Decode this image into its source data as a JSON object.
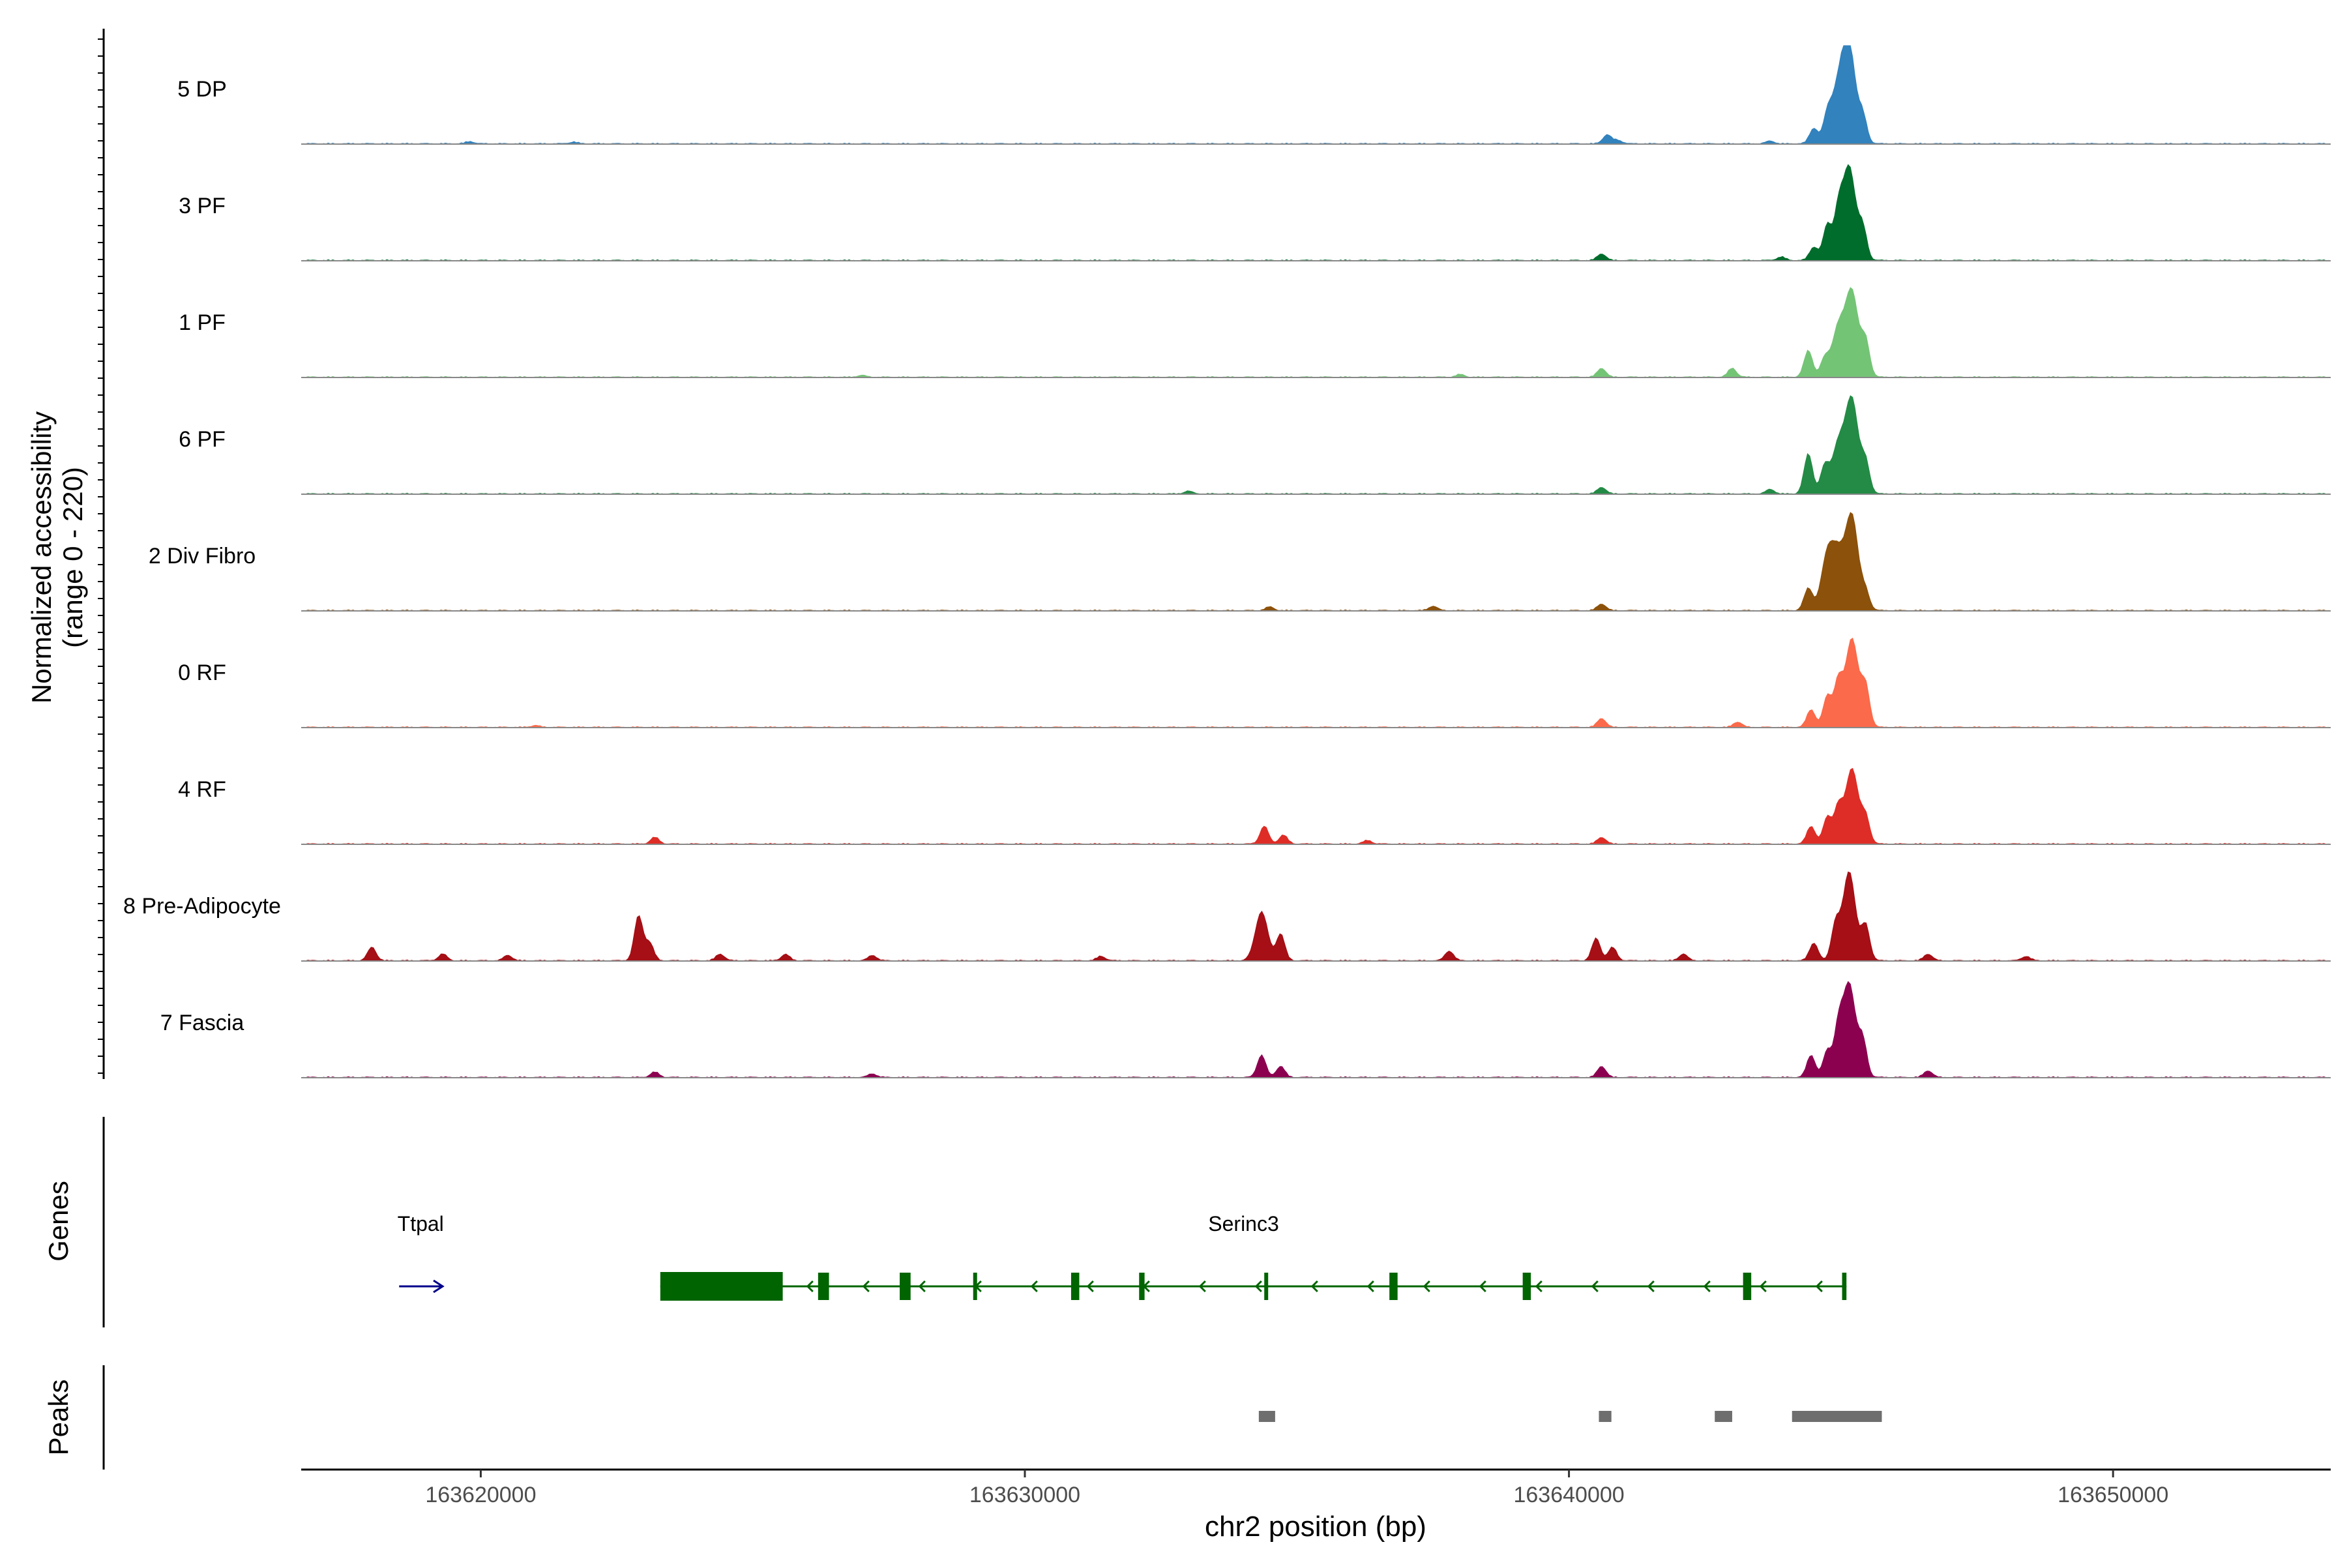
{
  "chart_data": {
    "type": "area",
    "title": "",
    "y_axis_title_line1": "Normalized accessibility",
    "y_axis_title_line2": "(range 0 - 220)",
    "ylim": [
      0,
      220
    ],
    "xlabel": "chr2 position (bp)",
    "xlim": [
      163616700,
      163654000
    ],
    "x_ticks": [
      163620000,
      163630000,
      163640000,
      163650000
    ],
    "x_tick_labels": [
      "163620000",
      "163630000",
      "163640000",
      "163650000"
    ],
    "series": [
      {
        "name": "5 DP",
        "color": "#3182bd",
        "peak_value": 215,
        "peaks": [
          [
            163644500,
            35
          ],
          [
            163644750,
            60
          ],
          [
            163644950,
            120
          ],
          [
            163645150,
            215
          ],
          [
            163645400,
            60
          ],
          [
            163640700,
            20
          ],
          [
            163640900,
            8
          ],
          [
            163619800,
            5
          ],
          [
            163621700,
            4
          ],
          [
            163643700,
            6
          ]
        ]
      },
      {
        "name": "3 PF",
        "color": "#006d2c",
        "peak_value": 210,
        "peaks": [
          [
            163644500,
            30
          ],
          [
            163644750,
            80
          ],
          [
            163644950,
            100
          ],
          [
            163645150,
            210
          ],
          [
            163645400,
            70
          ],
          [
            163640600,
            15
          ],
          [
            163643900,
            8
          ]
        ]
      },
      {
        "name": "1 PF",
        "color": "#74c476",
        "peak_value": 190,
        "peaks": [
          [
            163644400,
            60
          ],
          [
            163644700,
            40
          ],
          [
            163644950,
            110
          ],
          [
            163645200,
            190
          ],
          [
            163645450,
            80
          ],
          [
            163640600,
            20
          ],
          [
            163643000,
            20
          ],
          [
            163638000,
            6
          ],
          [
            163627000,
            4
          ]
        ]
      },
      {
        "name": "6 PF",
        "color": "#238b45",
        "peak_value": 210,
        "peaks": [
          [
            163644400,
            90
          ],
          [
            163644700,
            60
          ],
          [
            163644950,
            110
          ],
          [
            163645200,
            210
          ],
          [
            163645450,
            70
          ],
          [
            163640600,
            15
          ],
          [
            163643700,
            10
          ],
          [
            163633000,
            6
          ]
        ]
      },
      {
        "name": "2 Div Fibro",
        "color": "#8c510a",
        "peak_value": 210,
        "peaks": [
          [
            163644400,
            50
          ],
          [
            163644750,
            120
          ],
          [
            163644950,
            110
          ],
          [
            163645200,
            210
          ],
          [
            163645450,
            40
          ],
          [
            163640600,
            15
          ],
          [
            163637500,
            10
          ],
          [
            163634500,
            8
          ]
        ]
      },
      {
        "name": "0 RF",
        "color": "#fb6a4a",
        "peak_value": 200,
        "peaks": [
          [
            163644450,
            40
          ],
          [
            163644750,
            70
          ],
          [
            163644950,
            100
          ],
          [
            163645200,
            200
          ],
          [
            163645450,
            90
          ],
          [
            163640600,
            20
          ],
          [
            163643100,
            12
          ],
          [
            163621000,
            4
          ]
        ]
      },
      {
        "name": "4 RF",
        "color": "#de2d26",
        "peak_value": 170,
        "peaks": [
          [
            163644450,
            40
          ],
          [
            163644750,
            60
          ],
          [
            163644950,
            80
          ],
          [
            163645200,
            170
          ],
          [
            163645450,
            60
          ],
          [
            163634400,
            40
          ],
          [
            163634750,
            20
          ],
          [
            163623200,
            15
          ],
          [
            163640600,
            15
          ],
          [
            163636300,
            8
          ]
        ]
      },
      {
        "name": "8 Pre-Adipocyte",
        "color": "#a50f15",
        "peak_value": 200,
        "peaks": [
          [
            163622900,
            100
          ],
          [
            163623100,
            40
          ],
          [
            163634350,
            110
          ],
          [
            163634700,
            60
          ],
          [
            163640500,
            50
          ],
          [
            163640800,
            30
          ],
          [
            163644500,
            40
          ],
          [
            163644900,
            80
          ],
          [
            163645150,
            200
          ],
          [
            163645450,
            80
          ],
          [
            163618000,
            30
          ],
          [
            163619300,
            15
          ],
          [
            163620500,
            12
          ],
          [
            163624400,
            15
          ],
          [
            163625600,
            14
          ],
          [
            163627200,
            12
          ],
          [
            163631400,
            10
          ],
          [
            163637800,
            22
          ],
          [
            163642100,
            15
          ],
          [
            163646600,
            15
          ],
          [
            163648400,
            10
          ]
        ]
      },
      {
        "name": "7 Fascia",
        "color": "#8c0050",
        "peak_value": 210,
        "peaks": [
          [
            163644450,
            50
          ],
          [
            163644750,
            60
          ],
          [
            163644950,
            100
          ],
          [
            163645150,
            210
          ],
          [
            163645400,
            80
          ],
          [
            163634350,
            50
          ],
          [
            163634700,
            25
          ],
          [
            163640600,
            25
          ],
          [
            163623200,
            12
          ],
          [
            163646600,
            15
          ],
          [
            163627200,
            8
          ]
        ]
      }
    ],
    "genes": {
      "title": "Genes",
      "items": [
        {
          "name": "Ttpal",
          "strand": "+",
          "color": "#00008b",
          "start": 163618500,
          "end": 163619300
        },
        {
          "name": "Serinc3",
          "strand": "-",
          "color": "#006400",
          "start": 163623300,
          "end": 163645100,
          "exons": [
            [
              163623300,
              163625550
            ],
            [
              163626200,
              163626400
            ],
            [
              163627700,
              163627900
            ],
            [
              163629050,
              163629100
            ],
            [
              163630850,
              163631000
            ],
            [
              163632100,
              163632200
            ],
            [
              163634400,
              163634460
            ],
            [
              163636700,
              163636850
            ],
            [
              163639150,
              163639300
            ],
            [
              163643200,
              163643350
            ],
            [
              163645020,
              163645100
            ]
          ],
          "thick": [
            [
              163623300,
              163625550
            ]
          ]
        }
      ]
    },
    "peaks_track": {
      "title": "Peaks",
      "color": "#6e6e6e",
      "regions": [
        [
          163634300,
          163634600
        ],
        [
          163640550,
          163640780
        ],
        [
          163642680,
          163643000
        ],
        [
          163644100,
          163645750
        ]
      ]
    }
  }
}
